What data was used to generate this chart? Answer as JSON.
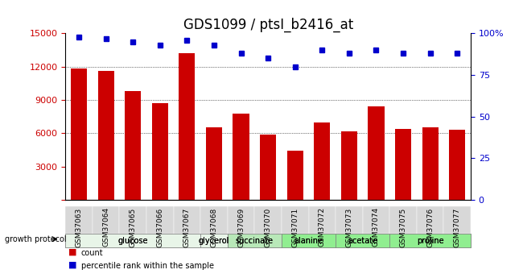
{
  "title": "GDS1099 / ptsI_b2416_at",
  "samples": [
    "GSM37063",
    "GSM37064",
    "GSM37065",
    "GSM37066",
    "GSM37067",
    "GSM37068",
    "GSM37069",
    "GSM37070",
    "GSM37071",
    "GSM37072",
    "GSM37073",
    "GSM37074",
    "GSM37075",
    "GSM37076",
    "GSM37077"
  ],
  "counts": [
    11800,
    11600,
    9800,
    8700,
    13200,
    6500,
    7800,
    5900,
    4400,
    7000,
    6200,
    8400,
    6400,
    6500,
    6300
  ],
  "percentile_ranks": [
    98,
    97,
    95,
    93,
    96,
    93,
    88,
    85,
    80,
    90,
    88,
    90,
    88,
    88,
    88
  ],
  "bar_color": "#cc0000",
  "dot_color": "#0000cc",
  "ylim_left": [
    0,
    15000
  ],
  "ylim_right": [
    0,
    100
  ],
  "yticks_left": [
    0,
    3000,
    6000,
    9000,
    12000,
    15000
  ],
  "yticks_right": [
    0,
    25,
    50,
    75,
    100
  ],
  "groups": [
    {
      "label": "glucose",
      "start": 0,
      "end": 5,
      "color": "#e8f5e8"
    },
    {
      "label": "glycerol",
      "start": 5,
      "end": 6,
      "color": "#e8f5e8"
    },
    {
      "label": "succinate",
      "start": 6,
      "end": 8,
      "color": "#b8e8b8"
    },
    {
      "label": "alanine",
      "start": 8,
      "end": 10,
      "color": "#90ee90"
    },
    {
      "label": "acetate",
      "start": 10,
      "end": 12,
      "color": "#90ee90"
    },
    {
      "label": "proline",
      "start": 12,
      "end": 15,
      "color": "#90ee90"
    }
  ],
  "growth_protocol_label": "growth protocol",
  "legend_count_label": "count",
  "legend_pct_label": "percentile rank within the sample",
  "title_fontsize": 12,
  "axis_label_fontsize": 9,
  "tick_label_fontsize": 8
}
